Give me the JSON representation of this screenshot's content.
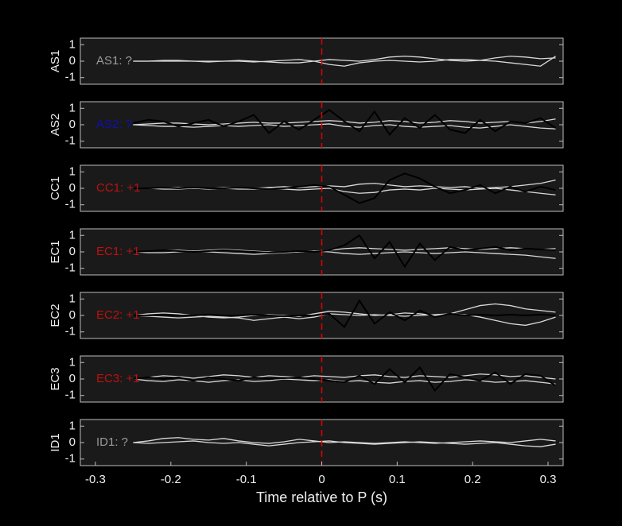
{
  "chart_data": [
    {
      "type": "line",
      "ylabel": "AS1",
      "annotation": "AS1: ?",
      "annotation_color": "#9a9a9a",
      "xlim": [
        -0.32,
        0.32
      ],
      "ylim": [
        -1.4,
        1.4
      ],
      "yticks": [
        -1,
        0,
        1
      ],
      "vline_x": 0,
      "vline_color": "#e00000",
      "x": [
        -0.25,
        -0.23,
        -0.21,
        -0.19,
        -0.17,
        -0.15,
        -0.13,
        -0.11,
        -0.09,
        -0.07,
        -0.05,
        -0.03,
        -0.01,
        0.01,
        0.03,
        0.05,
        0.07,
        0.09,
        0.11,
        0.13,
        0.15,
        0.17,
        0.19,
        0.21,
        0.23,
        0.25,
        0.27,
        0.29,
        0.31
      ],
      "series": [
        {
          "color": "#d9d9d9",
          "values": [
            0,
            0,
            0.05,
            0.05,
            0,
            -0.05,
            0,
            0.05,
            0,
            -0.05,
            -0.1,
            -0.1,
            0,
            0.1,
            0.05,
            0,
            0.1,
            0.25,
            0.3,
            0.25,
            0.15,
            0.05,
            0,
            0.05,
            0.2,
            0.3,
            0.25,
            0.15,
            0.2
          ]
        },
        {
          "color": "#d9d9d9",
          "values": [
            0,
            0,
            0,
            0,
            0,
            0,
            0,
            0,
            -0.05,
            0,
            0.05,
            0.1,
            0,
            -0.2,
            -0.3,
            -0.1,
            0,
            0.05,
            0,
            -0.05,
            0,
            0.1,
            0.1,
            0.05,
            0,
            -0.1,
            -0.2,
            -0.3,
            0.3
          ]
        }
      ]
    },
    {
      "type": "line",
      "ylabel": "AS2",
      "annotation": "AS2: ?",
      "annotation_color": "#1010b0",
      "xlim": [
        -0.32,
        0.32
      ],
      "ylim": [
        -1.4,
        1.4
      ],
      "yticks": [
        -1,
        0,
        1
      ],
      "vline_x": 0,
      "vline_color": "#e00000",
      "x": [
        -0.25,
        -0.23,
        -0.21,
        -0.19,
        -0.17,
        -0.15,
        -0.13,
        -0.11,
        -0.09,
        -0.07,
        -0.05,
        -0.03,
        -0.01,
        0.01,
        0.03,
        0.05,
        0.07,
        0.09,
        0.11,
        0.13,
        0.15,
        0.17,
        0.19,
        0.21,
        0.23,
        0.25,
        0.27,
        0.29,
        0.31
      ],
      "series": [
        {
          "color": "#d9d9d9",
          "values": [
            0,
            0.05,
            0.1,
            0.1,
            0.05,
            0,
            0.05,
            0.1,
            0.15,
            0.1,
            0.1,
            0.15,
            0.2,
            0.25,
            0.2,
            0.1,
            0.15,
            0.25,
            0.2,
            0.1,
            0.15,
            0.25,
            0.2,
            0.1,
            0.15,
            0.2,
            0.1,
            0.2,
            0.35
          ]
        },
        {
          "color": "#d9d9d9",
          "values": [
            0,
            -0.05,
            -0.1,
            -0.1,
            -0.15,
            -0.1,
            -0.05,
            -0.1,
            -0.05,
            0,
            -0.1,
            -0.05,
            0,
            0.05,
            -0.1,
            -0.15,
            -0.05,
            0,
            -0.1,
            -0.15,
            -0.1,
            -0.05,
            -0.15,
            -0.2,
            -0.1,
            0,
            -0.1,
            -0.2,
            -0.25
          ]
        },
        {
          "color": "#000000",
          "values": [
            0.1,
            0.3,
            0.2,
            -0.1,
            0.1,
            0.3,
            -0.1,
            0.2,
            0.6,
            -0.5,
            0.2,
            -0.3,
            0.3,
            0.9,
            0.2,
            -0.4,
            0.8,
            -0.6,
            0.4,
            -0.2,
            0.6,
            -0.3,
            -0.5,
            0.3,
            -0.4,
            0.2,
            0.1,
            0.4,
            -0.2
          ]
        }
      ]
    },
    {
      "type": "line",
      "ylabel": "CC1",
      "annotation": "CC1: +1",
      "annotation_color": "#c01010",
      "xlim": [
        -0.32,
        0.32
      ],
      "ylim": [
        -1.4,
        1.4
      ],
      "yticks": [
        -1,
        0,
        1
      ],
      "vline_x": 0,
      "vline_color": "#e00000",
      "x": [
        -0.25,
        -0.23,
        -0.21,
        -0.19,
        -0.17,
        -0.15,
        -0.13,
        -0.11,
        -0.09,
        -0.07,
        -0.05,
        -0.03,
        -0.01,
        0.01,
        0.03,
        0.05,
        0.07,
        0.09,
        0.11,
        0.13,
        0.15,
        0.17,
        0.19,
        0.21,
        0.23,
        0.25,
        0.27,
        0.29,
        0.31
      ],
      "series": [
        {
          "color": "#d9d9d9",
          "values": [
            0,
            0,
            0.05,
            0.05,
            0,
            0,
            0.05,
            0.05,
            0,
            0.05,
            0.1,
            0.05,
            0.1,
            0.15,
            0.1,
            0.25,
            0.3,
            0.2,
            0.1,
            0.15,
            0.1,
            0.05,
            0.1,
            0,
            0.05,
            0.1,
            0.2,
            0.3,
            0.5
          ]
        },
        {
          "color": "#d9d9d9",
          "values": [
            0,
            0,
            -0.05,
            -0.05,
            0,
            -0.05,
            0,
            -0.05,
            -0.05,
            0,
            -0.05,
            -0.1,
            -0.05,
            0,
            -0.2,
            -0.3,
            -0.25,
            -0.1,
            -0.05,
            -0.1,
            0,
            -0.05,
            -0.1,
            -0.05,
            0,
            -0.1,
            -0.2,
            -0.3,
            -0.4
          ]
        },
        {
          "color": "#000000",
          "values": [
            0,
            0,
            0.05,
            0,
            0.05,
            0,
            0,
            0.05,
            0,
            -0.05,
            0,
            0.1,
            0.2,
            0.1,
            -0.4,
            -0.9,
            -0.6,
            0.5,
            0.9,
            0.6,
            0.1,
            -0.3,
            -0.1,
            0.2,
            -0.3,
            0.1,
            -0.2,
            0.1,
            -0.1
          ]
        }
      ]
    },
    {
      "type": "line",
      "ylabel": "EC1",
      "annotation": "EC1: +1",
      "annotation_color": "#c01010",
      "xlim": [
        -0.32,
        0.32
      ],
      "ylim": [
        -1.4,
        1.4
      ],
      "yticks": [
        -1,
        0,
        1
      ],
      "vline_x": 0,
      "vline_color": "#e00000",
      "x": [
        -0.25,
        -0.23,
        -0.21,
        -0.19,
        -0.17,
        -0.15,
        -0.13,
        -0.11,
        -0.09,
        -0.07,
        -0.05,
        -0.03,
        -0.01,
        0.01,
        0.03,
        0.05,
        0.07,
        0.09,
        0.11,
        0.13,
        0.15,
        0.17,
        0.19,
        0.21,
        0.23,
        0.25,
        0.27,
        0.29,
        0.31
      ],
      "series": [
        {
          "color": "#d9d9d9",
          "values": [
            0,
            0.05,
            0.1,
            0.1,
            0.05,
            0.1,
            0.15,
            0.1,
            0.05,
            0,
            -0.05,
            0,
            0.05,
            0.1,
            0.2,
            0.25,
            0.2,
            0.15,
            0.1,
            0.15,
            0.2,
            0.25,
            0.2,
            0.15,
            0.2,
            0.25,
            0.2,
            0.15,
            0.2
          ]
        },
        {
          "color": "#d9d9d9",
          "values": [
            0,
            -0.05,
            -0.05,
            0,
            0.05,
            0,
            -0.05,
            -0.1,
            -0.15,
            -0.1,
            -0.05,
            0,
            0.05,
            0,
            -0.1,
            -0.15,
            -0.1,
            -0.05,
            0,
            -0.05,
            -0.1,
            -0.05,
            0,
            -0.05,
            -0.1,
            -0.15,
            -0.2,
            -0.3,
            -0.4
          ]
        },
        {
          "color": "#000000",
          "values": [
            0,
            0.05,
            0.1,
            0.05,
            0,
            0.05,
            0.1,
            0.05,
            0,
            -0.05,
            0,
            0.05,
            0,
            0.1,
            0.4,
            1.0,
            -0.4,
            0.6,
            -0.9,
            0.5,
            -0.5,
            0.3,
            0.1,
            0.2,
            0.3,
            0.1,
            0.2,
            0.15,
            0.1
          ]
        }
      ]
    },
    {
      "type": "line",
      "ylabel": "EC2",
      "annotation": "EC2: +1",
      "annotation_color": "#c01010",
      "xlim": [
        -0.32,
        0.32
      ],
      "ylim": [
        -1.4,
        1.4
      ],
      "yticks": [
        -1,
        0,
        1
      ],
      "vline_x": 0,
      "vline_color": "#e00000",
      "x": [
        -0.25,
        -0.23,
        -0.21,
        -0.19,
        -0.17,
        -0.15,
        -0.13,
        -0.11,
        -0.09,
        -0.07,
        -0.05,
        -0.03,
        -0.01,
        0.01,
        0.03,
        0.05,
        0.07,
        0.09,
        0.11,
        0.13,
        0.15,
        0.17,
        0.19,
        0.21,
        0.23,
        0.25,
        0.27,
        0.29,
        0.31
      ],
      "series": [
        {
          "color": "#d9d9d9",
          "values": [
            0,
            0.1,
            0.15,
            0.1,
            0,
            -0.1,
            -0.15,
            -0.1,
            0,
            0.05,
            0,
            -0.05,
            0.1,
            0.25,
            0.2,
            0.1,
            0,
            0.05,
            0.15,
            0.1,
            0,
            0.1,
            0.35,
            0.6,
            0.7,
            0.6,
            0.4,
            0.3,
            0.2
          ]
        },
        {
          "color": "#d9d9d9",
          "values": [
            0,
            -0.05,
            -0.1,
            -0.15,
            -0.1,
            -0.05,
            -0.1,
            -0.15,
            -0.3,
            -0.2,
            -0.1,
            -0.2,
            -0.1,
            0.1,
            0.05,
            0,
            0.05,
            0,
            -0.05,
            0,
            0.05,
            0.1,
            0.05,
            -0.1,
            -0.3,
            -0.5,
            -0.6,
            -0.4,
            -0.1
          ]
        },
        {
          "color": "#000000",
          "values": [
            0,
            0,
            0.05,
            0,
            0,
            0.05,
            0,
            0,
            0.05,
            0,
            -0.05,
            0,
            0,
            0.1,
            -0.7,
            0.9,
            -0.5,
            0.2,
            -0.3,
            0.3,
            -0.1,
            0.1,
            0,
            0.05,
            0,
            0.05,
            0,
            0.05,
            0
          ]
        }
      ]
    },
    {
      "type": "line",
      "ylabel": "EC3",
      "annotation": "EC3: +1",
      "annotation_color": "#c01010",
      "xlim": [
        -0.32,
        0.32
      ],
      "ylim": [
        -1.4,
        1.4
      ],
      "yticks": [
        -1,
        0,
        1
      ],
      "vline_x": 0,
      "vline_color": "#e00000",
      "x": [
        -0.25,
        -0.23,
        -0.21,
        -0.19,
        -0.17,
        -0.15,
        -0.13,
        -0.11,
        -0.09,
        -0.07,
        -0.05,
        -0.03,
        -0.01,
        0.01,
        0.03,
        0.05,
        0.07,
        0.09,
        0.11,
        0.13,
        0.15,
        0.17,
        0.19,
        0.21,
        0.23,
        0.25,
        0.27,
        0.29,
        0.31
      ],
      "series": [
        {
          "color": "#d9d9d9",
          "values": [
            0,
            0.1,
            0.2,
            0.15,
            0.05,
            0.15,
            0.25,
            0.2,
            0.1,
            0.2,
            0.15,
            0.1,
            0.2,
            0.15,
            0.1,
            0.2,
            0.25,
            0.15,
            0.1,
            0.2,
            0.15,
            0.1,
            0.2,
            0.3,
            0.25,
            0.15,
            0.2,
            0.1,
            0
          ]
        },
        {
          "color": "#d9d9d9",
          "values": [
            0,
            -0.1,
            -0.15,
            -0.05,
            -0.1,
            -0.2,
            -0.1,
            -0.05,
            -0.15,
            -0.1,
            0,
            -0.05,
            -0.1,
            -0.05,
            -0.15,
            -0.1,
            -0.2,
            -0.25,
            -0.15,
            -0.1,
            -0.2,
            -0.15,
            -0.05,
            -0.1,
            -0.2,
            -0.15,
            -0.1,
            -0.2,
            -0.3
          ]
        },
        {
          "color": "#000000",
          "values": [
            0,
            0.1,
            0,
            0.1,
            -0.1,
            0.1,
            0,
            -0.1,
            0.1,
            0,
            0.05,
            0.1,
            0,
            -0.1,
            -0.2,
            0.2,
            -0.3,
            0.6,
            -0.2,
            0.7,
            -0.7,
            0.3,
            0.1,
            -0.1,
            0.4,
            -0.3,
            0.3,
            0.2,
            -0.4
          ]
        }
      ]
    },
    {
      "type": "line",
      "ylabel": "ID1",
      "annotation": "ID1: ?",
      "annotation_color": "#9a9a9a",
      "xlim": [
        -0.32,
        0.32
      ],
      "ylim": [
        -1.4,
        1.4
      ],
      "yticks": [
        -1,
        0,
        1
      ],
      "vline_x": 0,
      "vline_color": "#e00000",
      "xticks": [
        -0.3,
        -0.2,
        -0.1,
        0,
        0.1,
        0.2,
        0.3
      ],
      "xlabel": "Time relative to P (s)",
      "x": [
        -0.25,
        -0.23,
        -0.21,
        -0.19,
        -0.17,
        -0.15,
        -0.13,
        -0.11,
        -0.09,
        -0.07,
        -0.05,
        -0.03,
        -0.01,
        0.01,
        0.03,
        0.05,
        0.07,
        0.09,
        0.11,
        0.13,
        0.15,
        0.17,
        0.19,
        0.21,
        0.23,
        0.25,
        0.27,
        0.29,
        0.31
      ],
      "series": [
        {
          "color": "#d9d9d9",
          "values": [
            0,
            0.1,
            0.25,
            0.3,
            0.2,
            0.15,
            0.25,
            0.1,
            0,
            -0.05,
            0.05,
            0.2,
            0.1,
            0,
            0.05,
            0,
            -0.05,
            0,
            0.05,
            0,
            -0.05,
            0,
            0.05,
            0.1,
            0.05,
            0,
            0.1,
            0.2,
            0.1
          ]
        },
        {
          "color": "#d9d9d9",
          "values": [
            0,
            -0.05,
            0,
            0.05,
            0.1,
            0,
            -0.05,
            0,
            -0.1,
            -0.2,
            -0.1,
            0,
            0.05,
            0.1,
            0,
            -0.05,
            -0.1,
            -0.05,
            0,
            0.05,
            0,
            -0.05,
            -0.1,
            -0.05,
            0,
            -0.1,
            -0.2,
            -0.25,
            -0.1
          ]
        }
      ]
    }
  ]
}
